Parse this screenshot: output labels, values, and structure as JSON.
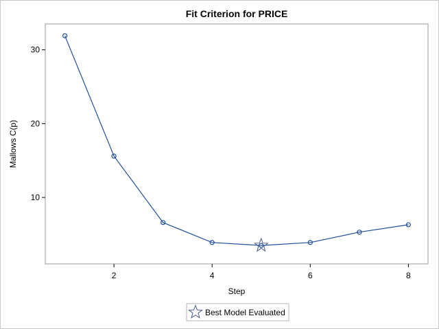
{
  "chart_data": {
    "type": "line",
    "title": "Fit Criterion for PRICE",
    "xlabel": "Step",
    "ylabel": "Mallows C(p)",
    "x": [
      1,
      2,
      3,
      4,
      5,
      6,
      7,
      8
    ],
    "series": [
      {
        "values": [
          31.9,
          15.6,
          6.6,
          3.9,
          3.5,
          3.9,
          5.3,
          6.3
        ]
      }
    ],
    "best": {
      "x": 5,
      "y": 3.5,
      "label": "Best Model Evaluated"
    },
    "xticks": [
      2,
      4,
      6,
      8
    ],
    "yticks": [
      10,
      20,
      30
    ],
    "xlim": [
      0.6,
      8.4
    ],
    "ylim": [
      1.0,
      33.5
    ],
    "grid": false,
    "legend": "bottom-center",
    "colors": {
      "line": "#1f4e9e",
      "marker": "#1f4e9e",
      "star": "#4a5a8c"
    }
  }
}
